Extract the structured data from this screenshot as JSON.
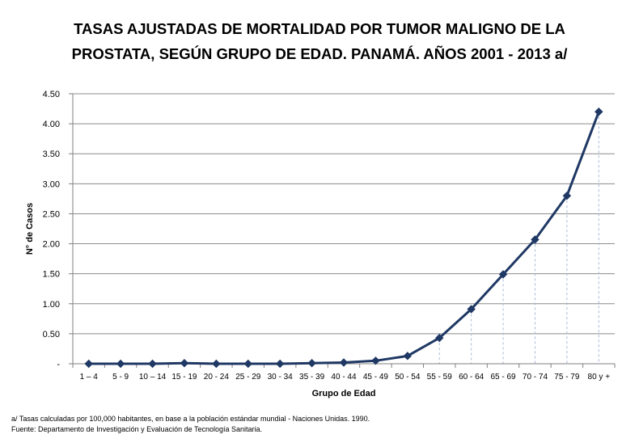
{
  "chart_data": {
    "type": "line",
    "title_lines": [
      "TASAS AJUSTADAS DE MORTALIDAD POR TUMOR MALIGNO DE LA",
      "PROSTATA,  SEGÚN GRUPO DE EDAD. PANAMÁ. AÑOS 2001 - 2013 a/"
    ],
    "xlabel": "Grupo de Edad",
    "ylabel": "N° de Casos",
    "categories": [
      "1 – 4",
      "5 - 9",
      "10 – 14",
      "15 - 19",
      "20 - 24",
      "25 - 29",
      "30 - 34",
      "35 - 39",
      "40 - 44",
      "45 - 49",
      "50 - 54",
      "55 - 59",
      "60 - 64",
      "65 - 69",
      "70 - 74",
      "75 - 79",
      "80 y +"
    ],
    "series": [
      {
        "values": [
          0.0,
          0.0,
          0.0,
          0.01,
          0.0,
          0.0,
          0.0,
          0.01,
          0.02,
          0.05,
          0.13,
          0.43,
          0.91,
          1.49,
          2.07,
          2.8,
          4.2
        ]
      }
    ],
    "ylim": [
      0,
      4.5
    ],
    "yticks": [
      0,
      0.5,
      1.0,
      1.5,
      2.0,
      2.5,
      3.0,
      3.5,
      4.0,
      4.5
    ],
    "ytick_labels": [
      "-",
      "0.50",
      "1.00",
      "1.50",
      "2.00",
      "2.50",
      "3.00",
      "3.50",
      "4.00",
      "4.50"
    ],
    "grid": true,
    "drop_lines_from_index": 11,
    "colors": {
      "line": "#1f3864",
      "grid": "#8c8c8c",
      "axis": "#7f7f7f",
      "drop": "#a9b8d9"
    }
  },
  "footnotes": [
    "a/ Tasas calculadas por 100,000 habitantes, en base a la población estándar  mundial - Naciones Unidas. 1990.",
    "Fuente: Departamento de Investigación y Evaluación de Tecnología Sanitaria."
  ]
}
